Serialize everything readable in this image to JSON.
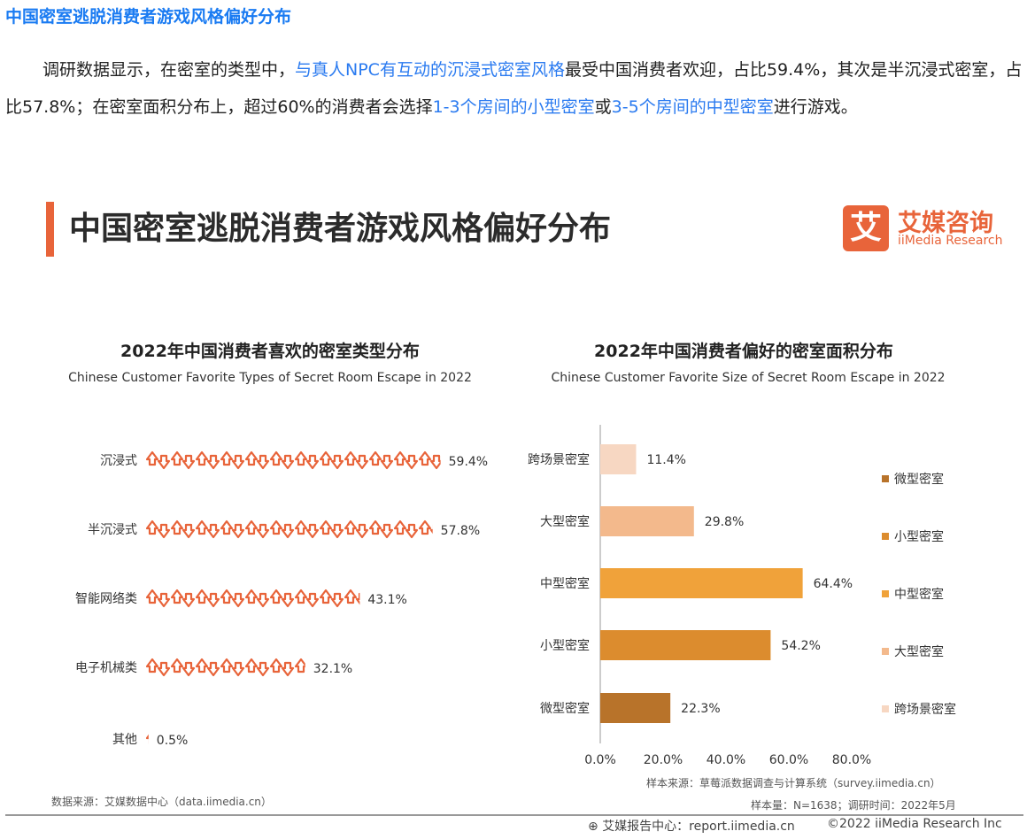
{
  "article": {
    "heading": "中国密室逃脱消费者游戏风格偏好分布",
    "paragraph": [
      {
        "text": "调研数据显示，在密室的类型中，",
        "hl": false
      },
      {
        "text": "与真人NPC有互动的沉浸式密室风格",
        "hl": true
      },
      {
        "text": "最受中国消费者欢迎，占比59.4%，其次是半沉浸式密室，占比57.8%；在密室面积分布上，超过60%的消费者会选择",
        "hl": false
      },
      {
        "text": "1-3个房间的小型密室",
        "hl": true
      },
      {
        "text": "或",
        "hl": false
      },
      {
        "text": "3-5个房间的中型密室",
        "hl": true
      },
      {
        "text": "进行游戏。",
        "hl": false
      }
    ]
  },
  "card": {
    "title": "中国密室逃脱消费者游戏风格偏好分布",
    "logo": {
      "glyph": "艾",
      "cn": "艾媒咨询",
      "en": "iiMedia Research",
      "color": "#e8643a"
    },
    "source_left": "数据来源：艾媒数据中心（data.iimedia.cn）",
    "source_right": "样本来源：草莓派数据调查与计算系统（survey.iimedia.cn）",
    "sample": "样本量：N=1638；调研时间：2022年5月",
    "footer_left": "艾媒报告中心：report.iimedia.cn",
    "footer_right": "©2022  iiMedia Research  Inc"
  },
  "chart_data": [
    {
      "type": "bar",
      "title": "2022年中国消费者喜欢的密室类型分布",
      "subtitle": "Chinese Customer Favorite Types of Secret Room Escape in 2022",
      "categories": [
        "沉浸式",
        "半沉浸式",
        "智能网络类",
        "电子机械类",
        "其他"
      ],
      "values": [
        59.4,
        57.8,
        43.1,
        32.1,
        0.5
      ],
      "labels": [
        "59.4%",
        "57.8%",
        "43.1%",
        "32.1%",
        "0.5%"
      ],
      "color": "#e8643a"
    },
    {
      "type": "bar",
      "title": "2022年中国消费者偏好的密室面积分布",
      "subtitle": "Chinese Customer Favorite Size of Secret Room Escape in 2022",
      "categories": [
        "跨场景密室",
        "大型密室",
        "中型密室",
        "小型密室",
        "微型密室"
      ],
      "values": [
        11.4,
        29.8,
        64.4,
        54.2,
        22.3
      ],
      "labels": [
        "11.4%",
        "29.8%",
        "64.4%",
        "54.2%",
        "22.3%"
      ],
      "colors": [
        "#f7d7c2",
        "#f3b98c",
        "#f0a23a",
        "#dc8c2e",
        "#b8732a"
      ],
      "xlim": [
        0,
        80
      ],
      "xticks": [
        "0.0%",
        "20.0%",
        "40.0%",
        "60.0%",
        "80.0%"
      ],
      "legend": [
        "微型密室",
        "小型密室",
        "中型密室",
        "大型密室",
        "跨场景密室"
      ],
      "legend_colors": [
        "#b8732a",
        "#dc8c2e",
        "#f0a23a",
        "#f3b98c",
        "#f7d7c2"
      ]
    }
  ]
}
